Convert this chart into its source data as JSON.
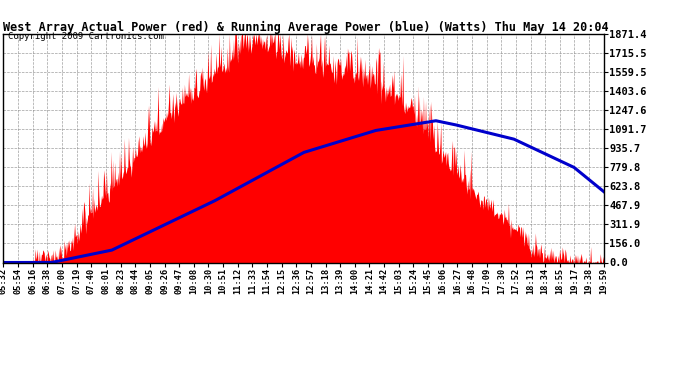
{
  "title": "West Array Actual Power (red) & Running Average Power (blue) (Watts) Thu May 14 20:04",
  "copyright": "Copyright 2009 Cartronics.com",
  "yticks": [
    0.0,
    156.0,
    311.9,
    467.9,
    623.8,
    779.8,
    935.7,
    1091.7,
    1247.6,
    1403.6,
    1559.5,
    1715.5,
    1871.4
  ],
  "ymax": 1871.4,
  "bg_color": "#ffffff",
  "grid_color": "#888888",
  "actual_color": "#ff0000",
  "avg_color": "#0000cc",
  "xtick_labels": [
    "05:32",
    "05:54",
    "06:16",
    "06:38",
    "07:00",
    "07:19",
    "07:40",
    "08:01",
    "08:23",
    "08:44",
    "09:05",
    "09:26",
    "09:47",
    "10:08",
    "10:30",
    "10:51",
    "11:12",
    "11:33",
    "11:54",
    "12:15",
    "12:36",
    "12:57",
    "13:18",
    "13:39",
    "14:00",
    "14:21",
    "14:42",
    "15:03",
    "15:24",
    "15:45",
    "16:06",
    "16:27",
    "16:48",
    "17:09",
    "17:30",
    "17:52",
    "18:13",
    "18:34",
    "18:55",
    "19:17",
    "19:38",
    "19:59"
  ],
  "n_xticks": 42
}
